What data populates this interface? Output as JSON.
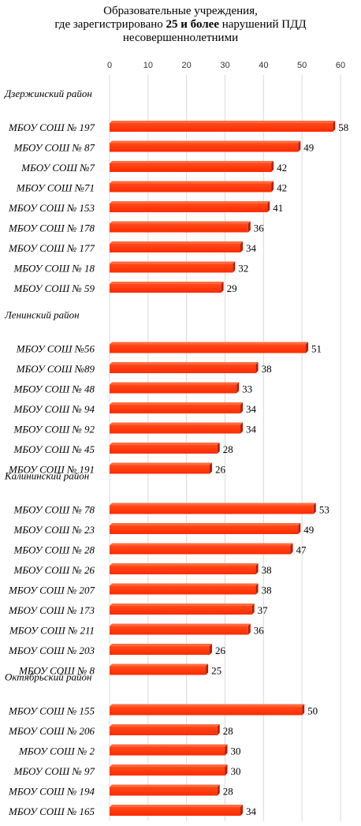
{
  "chart_data": {
    "type": "bar",
    "orientation": "horizontal",
    "title_lines": [
      "Образовательные учреждения,",
      {
        "before": "где зарегистрировано ",
        "bold": "25 и более",
        "after": " нарушений ПДД"
      },
      "несовершеннолетними"
    ],
    "xlim": [
      0,
      60
    ],
    "ticks": [
      0,
      10,
      20,
      30,
      40,
      50,
      60
    ],
    "axis_position": "top",
    "grid": true,
    "bar_color": "#ff2a00",
    "rows": [
      {
        "group": "Дзержинский район"
      },
      {
        "label": "МБОУ СОШ № 197",
        "value": 58
      },
      {
        "label": "МБОУ СОШ № 87",
        "value": 49
      },
      {
        "label": "МБОУ СОШ №7",
        "value": 42
      },
      {
        "label": "МБОУ СОШ №71",
        "value": 42
      },
      {
        "label": "МБОУ СОШ № 153",
        "value": 41
      },
      {
        "label": "МБОУ СОШ № 178",
        "value": 36
      },
      {
        "label": "МБОУ СОШ № 177",
        "value": 34
      },
      {
        "label": "МБОУ СОШ № 18",
        "value": 32
      },
      {
        "label": "МБОУ СОШ № 59",
        "value": 29
      },
      {
        "spacer": true
      },
      {
        "group": "Ленинский район"
      },
      {
        "label": "МБОУ СОШ №56",
        "value": 51
      },
      {
        "label": "МБОУ СОШ №89",
        "value": 38
      },
      {
        "label": "МБОУ СОШ № 48",
        "value": 33
      },
      {
        "label": "МБОУ СОШ № 94",
        "value": 34
      },
      {
        "label": "МБОУ СОШ № 92",
        "value": 34
      },
      {
        "label": "МБОУ СОШ № 45",
        "value": 28
      },
      {
        "label": "МБОУ СОШ № 191",
        "value": 26
      },
      {
        "group": "Калининский район"
      },
      {
        "label": "МБОУ СОШ № 78",
        "value": 53
      },
      {
        "label": "МБОУ СОШ № 23",
        "value": 49
      },
      {
        "label": "МБОУ СОШ № 28",
        "value": 47
      },
      {
        "label": "МБОУ СОШ № 26",
        "value": 38
      },
      {
        "label": "МБОУ СОШ № 207",
        "value": 38
      },
      {
        "label": "МБОУ СОШ № 173",
        "value": 37
      },
      {
        "label": "МБОУ СОШ № 211",
        "value": 36
      },
      {
        "label": "МБОУ СОШ № 203",
        "value": 26
      },
      {
        "label": "МБОУ СОШ № 8",
        "value": 25
      },
      {
        "group": "Октябрьский район"
      },
      {
        "label": "МБОУ СОШ № 155",
        "value": 50
      },
      {
        "label": "МБОУ СОШ № 206",
        "value": 28
      },
      {
        "label": "МБОУ СОШ № 2",
        "value": 30
      },
      {
        "label": "МБОУ СОШ № 97",
        "value": 30
      },
      {
        "label": "МБОУ СОШ № 194",
        "value": 28
      },
      {
        "label": "МБОУ СОШ № 165",
        "value": 34
      }
    ]
  }
}
